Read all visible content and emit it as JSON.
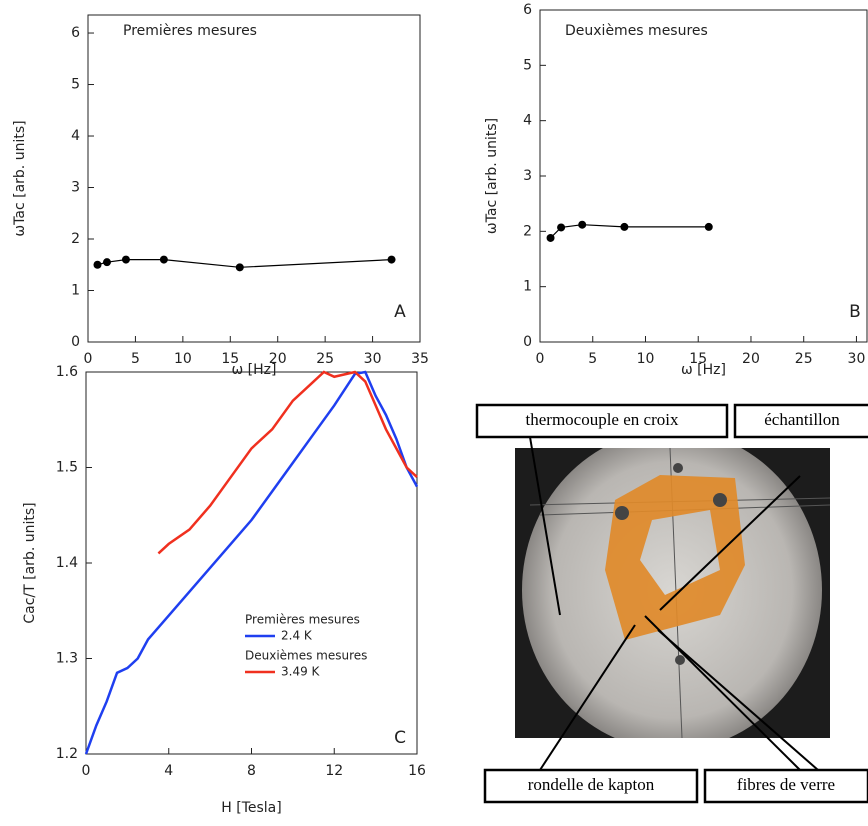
{
  "chart_data": [
    {
      "type": "line",
      "annotation": "Premières mesures",
      "panel_label": "A",
      "xlabel": "ω [Hz]",
      "ylabel": "ωTac [arb. units]",
      "xlim": [
        0,
        35
      ],
      "xticks": [
        0,
        5,
        10,
        15,
        20,
        25,
        30,
        35
      ],
      "ylim": [
        0,
        6.35
      ],
      "yticks": [
        0,
        1,
        2,
        3,
        4,
        5,
        6
      ],
      "series": [
        {
          "color": "#000000",
          "markers": true,
          "x": [
            1,
            2,
            4,
            8,
            16,
            32
          ],
          "values": [
            1.5,
            1.55,
            1.6,
            1.6,
            1.45,
            1.6
          ]
        }
      ]
    },
    {
      "type": "line",
      "annotation": "Deuxièmes mesures",
      "panel_label": "B",
      "xlabel": "ω [Hz]",
      "ylabel": "ωTac [arb. units]",
      "xlim": [
        0,
        31
      ],
      "xticks": [
        0,
        5,
        10,
        15,
        20,
        25,
        30
      ],
      "ylim": [
        0,
        6
      ],
      "yticks": [
        0,
        1,
        2,
        3,
        4,
        5,
        6
      ],
      "series": [
        {
          "color": "#000000",
          "markers": true,
          "x": [
            1,
            2,
            4,
            8,
            16
          ],
          "values": [
            1.88,
            2.07,
            2.12,
            2.08,
            2.08
          ]
        }
      ]
    },
    {
      "type": "line",
      "panel_label": "C",
      "xlabel": "H [Tesla]",
      "ylabel": "Cac/T [arb. units]",
      "xlim": [
        0,
        16
      ],
      "xticks": [
        0,
        4,
        8,
        12,
        16
      ],
      "ylim": [
        1.2,
        1.6
      ],
      "yticks": [
        1.2,
        1.3,
        1.4,
        1.5,
        1.6
      ],
      "series": [
        {
          "legend_group": "Premières mesures",
          "name": "2.4 K",
          "color": "#1f3ff0",
          "markers": false,
          "x": [
            0,
            0.5,
            1,
            1.5,
            2,
            2.5,
            3,
            4,
            5,
            6,
            7,
            8,
            9,
            10,
            11,
            12,
            13,
            13.5,
            14,
            14.5,
            15,
            15.5,
            16
          ],
          "values": [
            1.2,
            1.23,
            1.255,
            1.285,
            1.29,
            1.3,
            1.32,
            1.345,
            1.37,
            1.395,
            1.42,
            1.445,
            1.475,
            1.505,
            1.535,
            1.565,
            1.598,
            1.6,
            1.575,
            1.555,
            1.53,
            1.5,
            1.48
          ]
        },
        {
          "legend_group": "Deuxièmes mesures",
          "name": "3.49 K",
          "color": "#f0301f",
          "markers": false,
          "x": [
            3.5,
            4,
            5,
            6,
            7,
            8,
            9,
            10,
            11,
            11.5,
            12,
            13,
            13.5,
            14,
            14.5,
            15,
            15.5,
            16
          ],
          "values": [
            1.41,
            1.42,
            1.435,
            1.46,
            1.49,
            1.52,
            1.54,
            1.57,
            1.59,
            1.6,
            1.595,
            1.6,
            1.59,
            1.565,
            1.54,
            1.52,
            1.5,
            1.49
          ]
        }
      ]
    }
  ],
  "photo": {
    "labels": [
      "thermocouple en croix",
      "échantillon",
      "rondelle de kapton",
      "fibres de verre"
    ]
  }
}
